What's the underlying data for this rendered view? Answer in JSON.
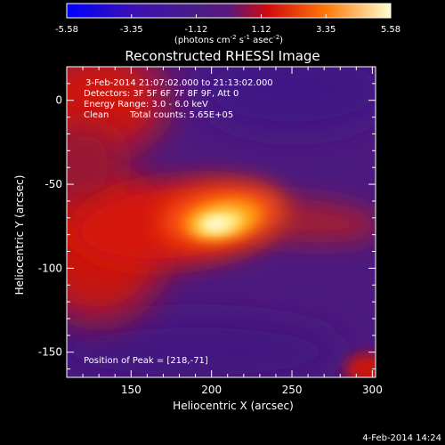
{
  "colorbar": {
    "tick_labels": [
      "-5.58",
      "-3.35",
      "-1.12",
      "1.12",
      "3.35",
      "5.58"
    ],
    "tick_values": [
      -5.58,
      -3.35,
      -1.12,
      1.12,
      3.35,
      5.58
    ],
    "range": [
      -5.58,
      5.58
    ],
    "units_label": "(photons cm",
    "units_exp1": "-2",
    "units_mid": " s",
    "units_exp2": "-1",
    "units_mid2": " asec",
    "units_exp3": "-2",
    "units_end": ")"
  },
  "chart_data": {
    "type": "heatmap",
    "title": "Reconstructed RHESSI Image",
    "xlabel": "Heliocentric X (arcsec)",
    "ylabel": "Heliocentric Y (arcsec)",
    "xlim": [
      110,
      302
    ],
    "ylim": [
      -165,
      20
    ],
    "x_ticks": [
      150,
      200,
      250,
      300
    ],
    "y_ticks": [
      0,
      -50,
      -100,
      -150
    ],
    "x_tick_labels": [
      "150",
      "200",
      "250",
      "300"
    ],
    "y_tick_labels": [
      "0",
      "-50",
      "-100",
      "-150"
    ],
    "colormap": "red-temperature",
    "peak": {
      "x": 218,
      "y": -71
    },
    "annotations": {
      "time": "3-Feb-2014 21:07:02.000 to 21:13:02.000",
      "detectors": "Detectors: 3F 5F 6F 7F 8F 9F, Att 0",
      "energy": "Energy Range: 3.0 - 6.0 keV",
      "clean_label": "Clean",
      "total_counts": "Total counts: 5.65E+05",
      "peak_position": "Position of Peak = [218,-71]"
    }
  },
  "footer": {
    "date": "4-Feb-2014 14:24"
  }
}
